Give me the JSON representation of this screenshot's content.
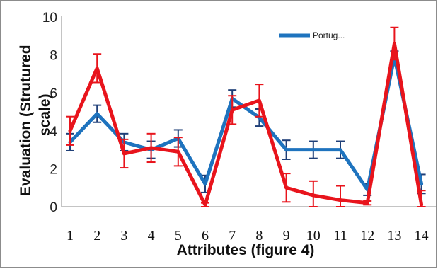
{
  "chart_data": {
    "type": "line",
    "xlabel": "Attributes (figure 4)",
    "ylabel_lines": [
      "Evaluation (Strutured",
      "scale)"
    ],
    "ylim": [
      0,
      10
    ],
    "yticks": [
      "0",
      "2",
      "4",
      "6",
      "8",
      "10"
    ],
    "categories": [
      "1",
      "2",
      "3",
      "4",
      "5",
      "6",
      "7",
      "8",
      "9",
      "10",
      "11",
      "12",
      "13",
      "14"
    ],
    "grid": false,
    "legend_position": "top-right",
    "series": [
      {
        "name": "Portug...",
        "color": "#1e73be",
        "errorbar_color": "#1f3f78",
        "values": [
          3.4,
          4.9,
          3.4,
          3.0,
          3.6,
          1.2,
          5.7,
          4.7,
          3.0,
          3.0,
          3.0,
          0.9,
          7.9,
          1.2
        ],
        "errors": [
          0.45,
          0.45,
          0.45,
          0.45,
          0.45,
          0.45,
          0.45,
          0.45,
          0.5,
          0.45,
          0.45,
          0.3,
          0.3,
          0.5
        ]
      },
      {
        "name": "",
        "color": "#e8141c",
        "errorbar_color": "#e8141c",
        "values": [
          4.0,
          7.3,
          2.8,
          3.1,
          2.9,
          0.1,
          5.1,
          5.6,
          1.0,
          0.6,
          0.35,
          0.2,
          8.6,
          0.1
        ],
        "errors": [
          0.75,
          0.75,
          0.75,
          0.75,
          0.75,
          0.1,
          0.75,
          0.85,
          0.75,
          0.75,
          0.75,
          0.1,
          0.85,
          0.75
        ]
      }
    ]
  }
}
